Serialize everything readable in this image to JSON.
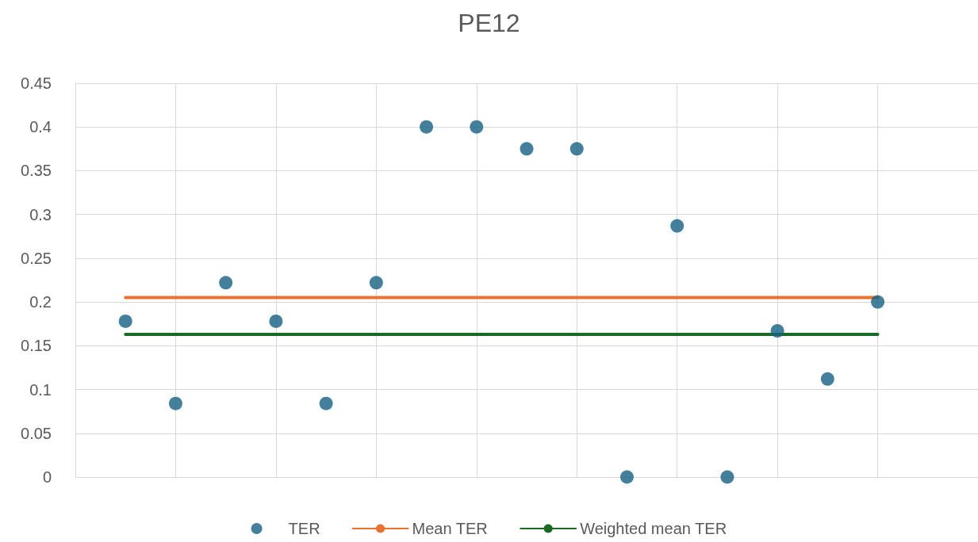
{
  "chart_data": {
    "type": "scatter",
    "title": "PE12",
    "categories": [
      null,
      null,
      null,
      null,
      null,
      null,
      null,
      null,
      null,
      null,
      null,
      null,
      null,
      null,
      null,
      null
    ],
    "series": [
      {
        "name": "TER",
        "color": "#156082",
        "marker": "circle",
        "values": [
          0.178,
          0.084,
          0.222,
          0.178,
          0.084,
          0.222,
          0.4,
          0.4,
          0.375,
          0.375,
          0,
          0.287,
          0,
          0.167,
          0.112,
          0.2
        ]
      },
      {
        "name": "Mean TER",
        "type": "line",
        "color": "#e97132",
        "marker": "none",
        "line_style": "solid",
        "values": [
          0.205,
          0.205,
          0.205,
          0.205,
          0.205,
          0.205,
          0.205,
          0.205,
          0.205,
          0.205,
          0.205,
          0.205,
          0.205,
          0.205,
          0.205,
          0.205
        ]
      },
      {
        "name": "Weighted mean TER",
        "type": "line",
        "color": "#196b24",
        "marker": "none",
        "line_style": "solid",
        "values": [
          0.163,
          0.163,
          0.163,
          0.163,
          0.163,
          0.163,
          0.163,
          0.163,
          0.163,
          0.163,
          0.163,
          0.163,
          0.163,
          0.163,
          0.163,
          0.163
        ]
      }
    ],
    "ylim": [
      0,
      0.45
    ],
    "yticks": [
      0,
      0.05,
      0.1,
      0.15,
      0.2,
      0.25,
      0.3,
      0.35,
      0.4,
      0.45
    ],
    "grid": true,
    "legend": "bottom",
    "tick_labels": "y"
  }
}
